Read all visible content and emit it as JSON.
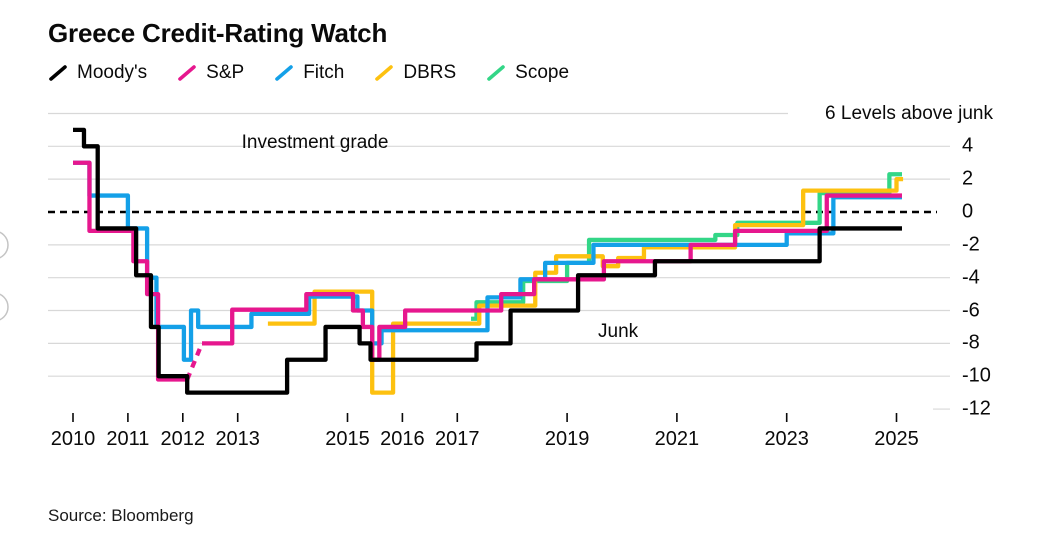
{
  "header": {
    "title": "Greece Credit-Rating Watch"
  },
  "annotations": {
    "investment_grade": "Investment grade",
    "junk": "Junk",
    "right_axis_note": "6 Levels above junk"
  },
  "footer": {
    "source": "Source: Bloomberg"
  },
  "colors": {
    "moodys": "#000000",
    "sp": "#e6178e",
    "fitch": "#14a0e8",
    "dbrs": "#fdc110",
    "scope": "#33d687",
    "grid": "#d8d8d8",
    "zero_line": "#000000",
    "edge_circles": "#c4c4c4"
  },
  "chart_data": {
    "type": "line",
    "title": "Greece Credit-Rating Watch",
    "ylabel": "Levels above junk",
    "ylim": [
      -12,
      6
    ],
    "grid": "on",
    "legend_position": "top",
    "x_ticks": [
      {
        "year": 2010,
        "label": "2010"
      },
      {
        "year": 2011,
        "label": "2011"
      },
      {
        "year": 2012,
        "label": "2012"
      },
      {
        "year": 2013,
        "label": "2013"
      },
      {
        "year": 2015,
        "label": "2015"
      },
      {
        "year": 2016,
        "label": "2016"
      },
      {
        "year": 2017,
        "label": "2017"
      },
      {
        "year": 2019,
        "label": "2019"
      },
      {
        "year": 2021,
        "label": "2021"
      },
      {
        "year": 2023,
        "label": "2023"
      },
      {
        "year": 2025,
        "label": "2025"
      }
    ],
    "y_labels": [
      {
        "v": 4,
        "t": "4"
      },
      {
        "v": 2,
        "t": "2"
      },
      {
        "v": 0,
        "t": "0"
      },
      {
        "v": -2,
        "t": "-2"
      },
      {
        "v": -4,
        "t": "-4"
      },
      {
        "v": -6,
        "t": "-6"
      },
      {
        "v": -8,
        "t": "-8"
      },
      {
        "v": -10,
        "t": "-10"
      },
      {
        "v": -12,
        "t": "-12"
      }
    ],
    "gridlines": {
      "full": [
        6,
        4,
        2,
        -2,
        -4,
        -6,
        -8,
        -10
      ],
      "dashed": [
        0
      ],
      "stub": [
        -12
      ]
    },
    "series": [
      {
        "name": "Moody's",
        "key": "moodys",
        "color": "#000000",
        "segments": [
          {
            "type": "steps",
            "end": 2025.1,
            "pts": [
              [
                2010.0,
                5
              ],
              [
                2010.2,
                4
              ],
              [
                2010.45,
                -1
              ],
              [
                2011.15,
                -3.85
              ],
              [
                2011.42,
                -7
              ],
              [
                2011.56,
                -10
              ],
              [
                2012.08,
                -11
              ],
              [
                2013.9,
                -9
              ],
              [
                2014.6,
                -7
              ],
              [
                2015.22,
                -8
              ],
              [
                2015.42,
                -9
              ],
              [
                2017.35,
                -8
              ],
              [
                2017.97,
                -6
              ],
              [
                2019.2,
                -3.85
              ],
              [
                2020.6,
                -3
              ],
              [
                2023.6,
                -1
              ]
            ]
          }
        ]
      },
      {
        "name": "S&P",
        "key": "sp",
        "color": "#e6178e",
        "segments": [
          {
            "type": "steps",
            "end": 2012.08,
            "pts": [
              [
                2010.0,
                3
              ],
              [
                2010.3,
                -1.15
              ],
              [
                2011.1,
                -3
              ],
              [
                2011.35,
                -5
              ],
              [
                2011.55,
                -10.2
              ]
            ]
          },
          {
            "type": "line",
            "dashed": true,
            "pts": [
              [
                2012.08,
                -10.2
              ],
              [
                2012.35,
                -8
              ]
            ]
          },
          {
            "type": "steps",
            "end": 2025.1,
            "pts": [
              [
                2012.35,
                -8
              ],
              [
                2012.9,
                -5.95
              ],
              [
                2014.25,
                -5
              ],
              [
                2015.1,
                -6
              ],
              [
                2015.28,
                -7
              ],
              [
                2015.45,
                -9
              ],
              [
                2015.58,
                -7
              ],
              [
                2016.05,
                -6
              ],
              [
                2017.8,
                -5
              ],
              [
                2018.4,
                -4.1
              ],
              [
                2019.67,
                -3
              ],
              [
                2021.25,
                -2
              ],
              [
                2022.06,
                -1.15
              ],
              [
                2023.73,
                1
              ]
            ]
          }
        ]
      },
      {
        "name": "Fitch",
        "key": "fitch",
        "color": "#14a0e8",
        "segments": [
          {
            "type": "steps",
            "end": 2025.1,
            "pts": [
              [
                2010.0,
                3
              ],
              [
                2010.3,
                1
              ],
              [
                2011.0,
                -1
              ],
              [
                2011.35,
                -4
              ],
              [
                2011.52,
                -7
              ],
              [
                2012.02,
                -9
              ],
              [
                2012.15,
                -6
              ],
              [
                2012.28,
                -7
              ],
              [
                2013.25,
                -6.2
              ],
              [
                2014.3,
                -5.15
              ],
              [
                2015.18,
                -6
              ],
              [
                2015.45,
                -8
              ],
              [
                2015.62,
                -7.2
              ],
              [
                2017.55,
                -5.2
              ],
              [
                2018.15,
                -4.1
              ],
              [
                2018.6,
                -3.1
              ],
              [
                2019.48,
                -2
              ],
              [
                2023.0,
                -1.3
              ],
              [
                2023.85,
                0.9
              ]
            ]
          }
        ]
      },
      {
        "name": "DBRS",
        "key": "dbrs",
        "color": "#fdc110",
        "segments": [
          {
            "type": "steps",
            "end": 2025.12,
            "pts": [
              [
                2013.55,
                -6.8
              ],
              [
                2014.4,
                -4.85
              ],
              [
                2015.45,
                -11
              ],
              [
                2015.83,
                -6.8
              ],
              [
                2017.4,
                -5.7
              ],
              [
                2018.42,
                -3.7
              ],
              [
                2018.8,
                -2.7
              ],
              [
                2019.65,
                -3.3
              ],
              [
                2019.93,
                -2.8
              ],
              [
                2020.4,
                -2.15
              ],
              [
                2022.06,
                -0.8
              ],
              [
                2023.3,
                1.3
              ],
              [
                2025.0,
                2
              ]
            ]
          }
        ]
      },
      {
        "name": "Scope",
        "key": "scope",
        "color": "#33d687",
        "segments": [
          {
            "type": "steps",
            "end": 2025.1,
            "pts": [
              [
                2017.25,
                -6.5
              ],
              [
                2017.35,
                -5.5
              ],
              [
                2018.2,
                -4.2
              ],
              [
                2019.0,
                -3.1
              ],
              [
                2019.4,
                -1.7
              ],
              [
                2021.7,
                -1.4
              ],
              [
                2022.1,
                -0.66
              ],
              [
                2023.6,
                1.15
              ],
              [
                2024.87,
                2.3
              ]
            ]
          }
        ]
      }
    ]
  }
}
